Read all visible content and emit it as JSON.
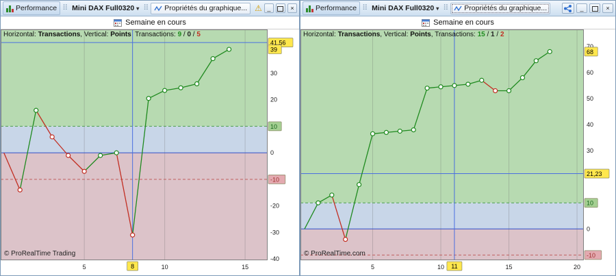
{
  "icons": {
    "grid_handle": "⠿",
    "dropdown": "▾",
    "warning": "⚠",
    "minimize": "_",
    "close": "×"
  },
  "panels": [
    {
      "titlebar": {
        "tab": "Performance",
        "instrument": "Mini DAX Full0320",
        "properties": "Propriétés du graphique..."
      },
      "period": "Semaine en cours",
      "header_tokens": [
        {
          "t": "Horizontal: "
        },
        {
          "t": "Transactions",
          "b": 1
        },
        {
          "t": ", Vertical: "
        },
        {
          "t": "Points",
          "b": 1
        },
        {
          "t": "  Transactions: "
        },
        {
          "t": "9",
          "b": 1,
          "c": "#1e8a1e"
        },
        {
          "t": " / "
        },
        {
          "t": "0",
          "b": 1,
          "c": "#222222"
        },
        {
          "t": " / "
        },
        {
          "t": "5",
          "b": 1,
          "c": "#c22e22"
        }
      ],
      "copyright": "© ProRealTime Trading"
    },
    {
      "titlebar": {
        "tab": "Performance",
        "instrument": "Mini DAX Full0320",
        "properties": "Propriétés du graphique..."
      },
      "period": "Semaine en cours",
      "header_tokens": [
        {
          "t": "Horizontal: "
        },
        {
          "t": "Transactions",
          "b": 1
        },
        {
          "t": ", Vertical: "
        },
        {
          "t": "Points",
          "b": 1
        },
        {
          "t": ", Transactions: "
        },
        {
          "t": "15",
          "b": 1,
          "c": "#1e8a1e"
        },
        {
          "t": " / "
        },
        {
          "t": "1",
          "b": 1,
          "c": "#222222"
        },
        {
          "t": " / "
        },
        {
          "t": "2",
          "b": 1,
          "c": "#c22e22"
        }
      ],
      "copyright": "© ProRealTime.com"
    }
  ],
  "chart_colors": {
    "win": "#1f8a1f",
    "loss": "#c22e22",
    "zone_green": "#b7dab1",
    "zone_blue": "#c8d6e8",
    "zone_red": "#dcc3c9",
    "zero": "#2f4fc8",
    "cursor": "#4a6fe0",
    "dash_upper": "#4f9f4f",
    "dash_lower": "#c06060",
    "grid": "rgba(100,100,100,0.28)",
    "axis_bg": "#ffffff",
    "axis_text": "#1a1a1a",
    "plot_border": "#7f7f7f"
  },
  "chart_data": [
    {
      "type": "line",
      "title": "Semaine en cours",
      "xlabel": "Transactions",
      "ylabel": "Points",
      "x": [
        0,
        1,
        2,
        3,
        4,
        5,
        6,
        7,
        8,
        9,
        10,
        11,
        12,
        13,
        14
      ],
      "values": [
        0,
        -14,
        16,
        6,
        -1,
        -7,
        -1,
        0,
        -31,
        20.5,
        23.5,
        24.5,
        26,
        35.5,
        39
      ],
      "transactions_summary": {
        "wins": 9,
        "neutral": 0,
        "losses": 5
      },
      "xlim": [
        -0.2,
        16.4
      ],
      "ylim": [
        -40.5,
        46.5
      ],
      "xticks": [
        5,
        10,
        15
      ],
      "yticks": [
        30,
        20,
        0,
        -20,
        -30,
        -40
      ],
      "upper_threshold": 10,
      "lower_threshold": -10,
      "cursor": {
        "x": 8,
        "y": 41.56
      },
      "x_boxes": [
        {
          "v": 8,
          "label": "8",
          "bg": "#ffe74d",
          "fg": "#000000"
        }
      ],
      "y_boxes": [
        {
          "v": 41.56,
          "label": "41,56",
          "bg": "#ffe74d",
          "fg": "#000000"
        },
        {
          "v": 39,
          "label": "39",
          "bg": "#ffe74d",
          "fg": "#000000"
        },
        {
          "v": 10,
          "label": "10",
          "bg": "#a5cf92",
          "fg": "#14641a"
        },
        {
          "v": -10,
          "label": "-10",
          "bg": "#e3aab0",
          "fg": "#a03030"
        }
      ],
      "legend": "none",
      "grid": "vertical-only"
    },
    {
      "type": "line",
      "title": "Semaine en cours",
      "xlabel": "Transactions",
      "ylabel": "Points",
      "x": [
        0,
        1,
        2,
        3,
        4,
        5,
        6,
        7,
        8,
        9,
        10,
        11,
        12,
        13,
        14,
        15,
        16,
        17,
        18
      ],
      "values": [
        0,
        10,
        13,
        -4,
        17,
        36.5,
        37,
        37.5,
        38,
        54,
        54.5,
        55,
        55.5,
        57,
        53,
        53,
        58,
        64.5,
        68
      ],
      "transactions_summary": {
        "wins": 15,
        "neutral": 1,
        "losses": 2
      },
      "xlim": [
        -0.3,
        20.5
      ],
      "ylim": [
        -12,
        76.5
      ],
      "xticks": [
        5,
        10,
        15,
        20
      ],
      "yticks": [
        70,
        60,
        50,
        40,
        30,
        0
      ],
      "upper_threshold": 10,
      "lower_threshold": -10,
      "cursor": {
        "x": 11,
        "y": 21.23
      },
      "x_boxes": [
        {
          "v": 11,
          "label": "11",
          "bg": "#ffe74d",
          "fg": "#000000"
        }
      ],
      "y_boxes": [
        {
          "v": 68,
          "label": "68",
          "bg": "#ffe74d",
          "fg": "#000000"
        },
        {
          "v": 21.23,
          "label": "21,23",
          "bg": "#ffe74d",
          "fg": "#000000"
        },
        {
          "v": 10,
          "label": "10",
          "bg": "#a5cf92",
          "fg": "#14641a"
        },
        {
          "v": -10,
          "label": "-10",
          "bg": "#e3aab0",
          "fg": "#a03030"
        }
      ],
      "legend": "none",
      "grid": "vertical-only"
    }
  ]
}
